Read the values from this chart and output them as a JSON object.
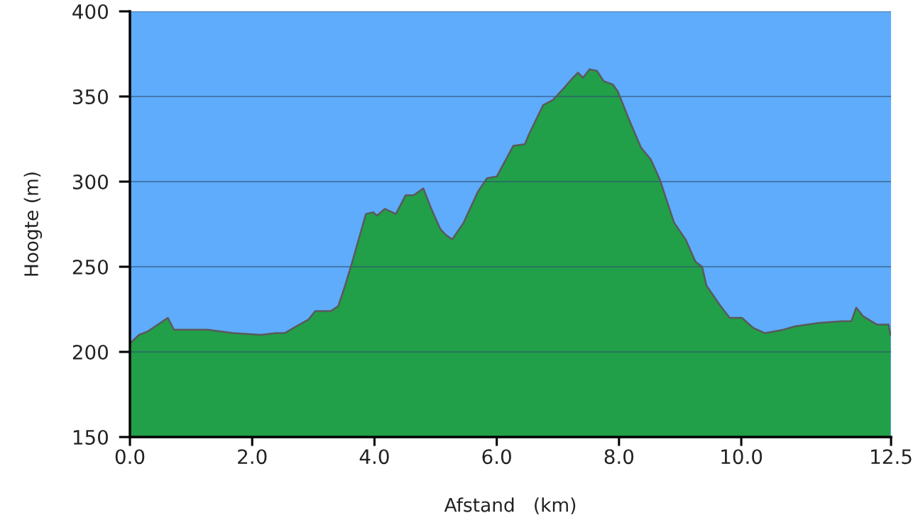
{
  "chart_data": {
    "type": "area",
    "xlabel": "Afstand   (km)",
    "ylabel": "Hoogte (m)",
    "series": [
      {
        "color": "#21a049",
        "x": [
          0.0,
          0.15,
          0.29,
          0.62,
          0.72,
          1.27,
          1.69,
          2.15,
          2.38,
          2.53,
          2.72,
          2.92,
          3.03,
          3.29,
          3.41,
          3.52,
          3.63,
          3.86,
          3.98,
          4.04,
          4.17,
          4.35,
          4.51,
          4.64,
          4.8,
          4.93,
          5.08,
          5.16,
          5.27,
          5.46,
          5.69,
          5.84,
          6.0,
          6.15,
          6.27,
          6.46,
          6.53,
          6.76,
          6.92,
          7.1,
          7.22,
          7.33,
          7.41,
          7.52,
          7.64,
          7.75,
          7.9,
          7.98,
          8.17,
          8.36,
          8.52,
          8.67,
          8.9,
          9.09,
          9.25,
          9.36,
          9.43,
          9.66,
          9.81,
          10.01,
          10.2,
          10.39,
          10.69,
          10.88,
          11.26,
          11.65,
          11.8,
          11.88,
          11.99,
          12.22,
          12.41,
          12.44
        ],
        "values": [
          205,
          210,
          212,
          220,
          213,
          213,
          211,
          210,
          211,
          211,
          215,
          219,
          224,
          224,
          227,
          239,
          252,
          281,
          282,
          280,
          284,
          281,
          292,
          292,
          296,
          284,
          272,
          269,
          266,
          276,
          294,
          302,
          303,
          313,
          321,
          322,
          328,
          345,
          348,
          355,
          360,
          364,
          361,
          366,
          365,
          359,
          357,
          353,
          336,
          320,
          313,
          301,
          276,
          266,
          253,
          250,
          239,
          227,
          220,
          220,
          214,
          211,
          213,
          215,
          217,
          218,
          218,
          226,
          221,
          216,
          216,
          210
        ]
      }
    ],
    "xlim": [
      0,
      12.45
    ],
    "xticks": [
      {
        "value": 0,
        "label": "0.0"
      },
      {
        "value": 2,
        "label": "2.0"
      },
      {
        "value": 4,
        "label": "4.0"
      },
      {
        "value": 6,
        "label": "6.0"
      },
      {
        "value": 8,
        "label": "8.0"
      },
      {
        "value": 10,
        "label": "10.0"
      },
      {
        "value": 12.45,
        "label": "12.5"
      }
    ],
    "ylim": [
      150,
      400
    ],
    "yticks": [
      150,
      200,
      250,
      300,
      350,
      400
    ],
    "grid": "y"
  }
}
